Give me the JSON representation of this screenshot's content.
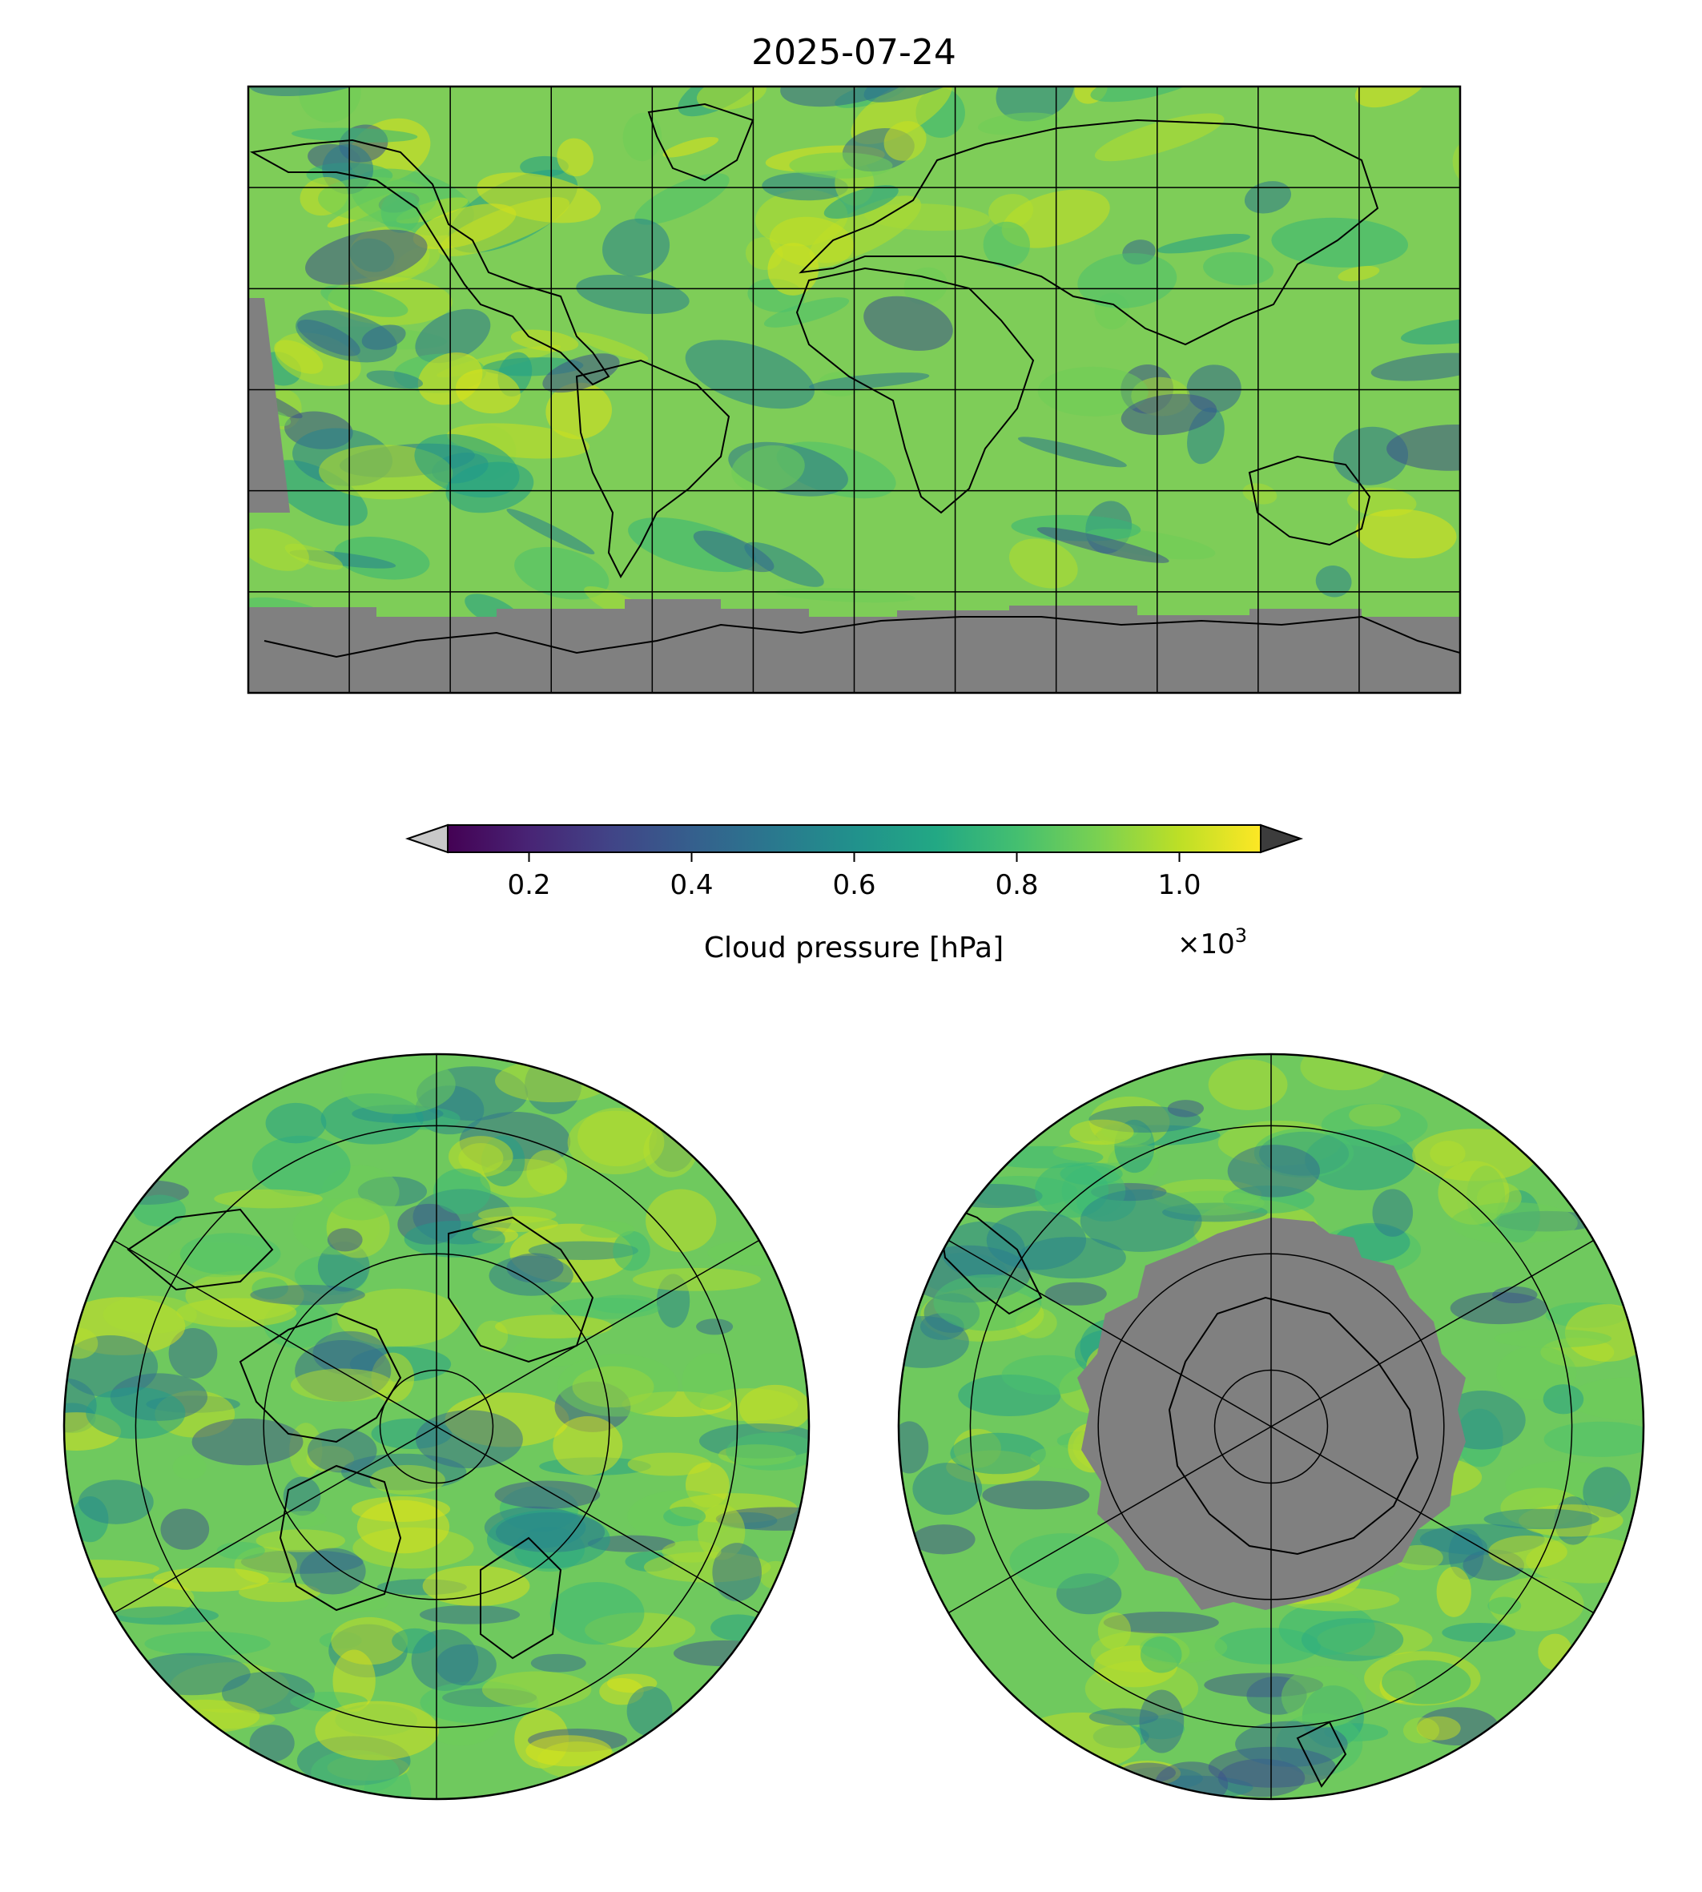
{
  "figure": {
    "title": "2025-07-24"
  },
  "colorbar": {
    "label": "Cloud pressure [hPa]",
    "multiplier_base": "×10",
    "multiplier_exponent": "3",
    "ticks": [
      {
        "value": 0.2,
        "label": "0.2"
      },
      {
        "value": 0.4,
        "label": "0.4"
      },
      {
        "value": 0.6,
        "label": "0.6"
      },
      {
        "value": 0.8,
        "label": "0.8"
      },
      {
        "value": 1.0,
        "label": "1.0"
      }
    ],
    "range": [
      0.1,
      1.1
    ],
    "colormap": "viridis",
    "under_color": "#c8c8c8",
    "over_color": "#3c3c3c",
    "missing_color": "#808080"
  },
  "maps": [
    {
      "name": "global-map",
      "projection": "equirectangular",
      "extent_lon": [
        -180,
        180
      ],
      "extent_lat": [
        -90,
        90
      ],
      "grid_step_lon": 30,
      "grid_step_lat": 30
    },
    {
      "name": "north-polar-map",
      "projection": "north-polar-stereographic",
      "lat_boundary": 30,
      "meridian_step": 60,
      "parallels": [
        80,
        60,
        40
      ]
    },
    {
      "name": "south-polar-map",
      "projection": "south-polar-stereographic",
      "lat_boundary": -30,
      "meridian_step": 60,
      "parallels": [
        -80,
        -60,
        -40
      ]
    }
  ]
}
